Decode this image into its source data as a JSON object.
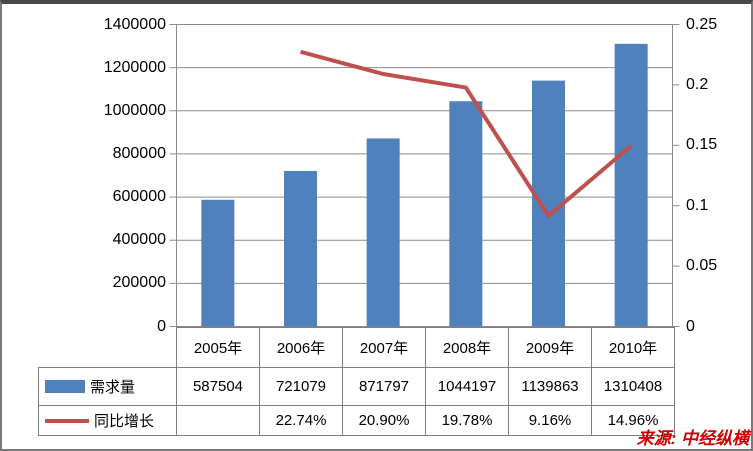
{
  "chart_data": {
    "type": "combo",
    "categories": [
      "2005年",
      "2006年",
      "2007年",
      "2008年",
      "2009年",
      "2010年"
    ],
    "series": [
      {
        "name": "需求量",
        "type": "bar",
        "axis": "left",
        "values": [
          587504,
          721079,
          871797,
          1044197,
          1139863,
          1310408
        ]
      },
      {
        "name": "同比增长",
        "type": "line",
        "axis": "right",
        "values": [
          null,
          0.2274,
          0.209,
          0.1978,
          0.0916,
          0.1496
        ]
      }
    ],
    "left_axis": {
      "min": 0,
      "max": 1400000,
      "tick_labels": [
        "1400000",
        "1200000",
        "1000000",
        "800000",
        "600000",
        "400000",
        "200000",
        "0"
      ]
    },
    "right_axis": {
      "min": 0,
      "max": 0.25,
      "tick_labels": [
        "0.25",
        "0.2",
        "0.15",
        "0.1",
        "0.05",
        "0"
      ]
    },
    "grid": true,
    "legend_position": "table-left"
  },
  "table": {
    "years": [
      "2005年",
      "2006年",
      "2007年",
      "2008年",
      "2009年",
      "2010年"
    ],
    "demand_label": "需求量",
    "demand_values": [
      "587504",
      "721079",
      "871797",
      "1044197",
      "1139863",
      "1310408"
    ],
    "growth_label": "同比增长",
    "growth_values": [
      "",
      "22.74%",
      "20.90%",
      "19.78%",
      "9.16%",
      "14.96%"
    ]
  },
  "source_note": "来源: 中经纵横",
  "colors": {
    "bar": "#4F81BD",
    "line": "#C0504D",
    "grid": "#8C8C8C",
    "axis": "#8C8C8C",
    "table_border": "#7F7F7F",
    "frame_side": "#7A7A7A",
    "frame_top": "#484848",
    "source_text": "#CC0000"
  }
}
